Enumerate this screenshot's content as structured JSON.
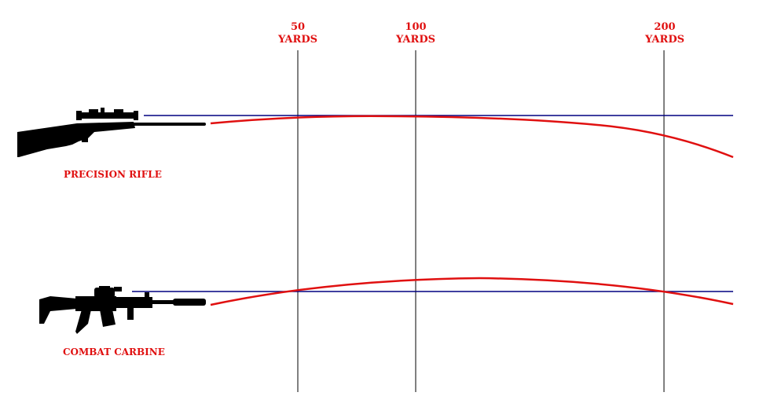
{
  "distance_markers": [
    {
      "value": "50",
      "unit": "YARDS"
    },
    {
      "value": "100",
      "unit": "YARDS"
    },
    {
      "value": "200",
      "unit": "YARDS"
    }
  ],
  "rifles": [
    {
      "label": "PRECISION RIFLE",
      "icon": "bolt-action-rifle-icon"
    },
    {
      "label": "COMBAT CARBINE",
      "icon": "ar-carbine-icon"
    }
  ],
  "colors": {
    "trajectory": "#e01010",
    "line_of_sight": "#000080",
    "distance_line": "#000000",
    "label": "#e01010",
    "silhouette": "#000000"
  }
}
